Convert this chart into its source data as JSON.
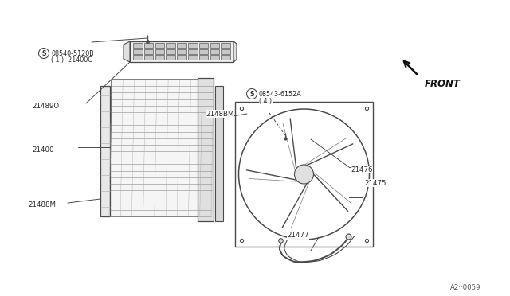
{
  "bg_color": "#ffffff",
  "line_color": "#4a4a4a",
  "text_color": "#2a2a2a",
  "ref_code": "A2··0059",
  "front_label": "FRONT",
  "labels": {
    "screw1": "08540-5120B",
    "screw1b": "( 1 )  21400C",
    "l21489O": "21489O",
    "l21400": "21400",
    "l21488M": "21488M",
    "l2148BM": "2148BM",
    "screw2": "08543-6152A",
    "screw2b": "( 4 )",
    "l21476": "21476",
    "l21475": "21475",
    "l21477": "21477"
  }
}
